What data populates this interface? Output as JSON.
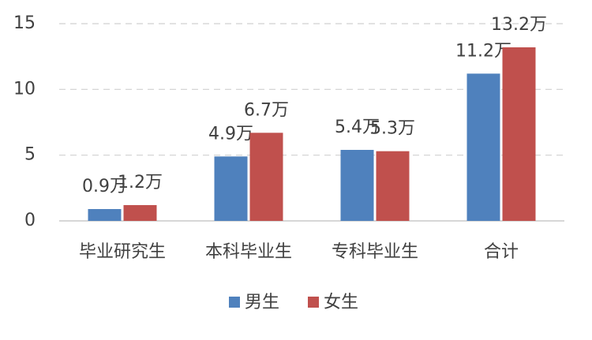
{
  "chart_data": {
    "type": "bar",
    "categories": [
      "毕业研究生",
      "本科毕业生",
      "专科毕业生",
      "合计"
    ],
    "series": [
      {
        "name": "男生",
        "color": "#4f81bd",
        "values": [
          0.9,
          4.9,
          5.4,
          11.2
        ],
        "value_labels": [
          "0.9万",
          "4.9万",
          "5.4万",
          "11.2万"
        ]
      },
      {
        "name": "女生",
        "color": "#c0504d",
        "values": [
          1.2,
          6.7,
          5.3,
          13.2
        ],
        "value_labels": [
          "1.2万",
          "6.7万",
          "5.3万",
          "13.2万"
        ]
      }
    ],
    "ylim": [
      0,
      15
    ],
    "yticks": [
      0,
      5,
      10,
      15
    ],
    "grid": true,
    "legend": "bottom"
  }
}
